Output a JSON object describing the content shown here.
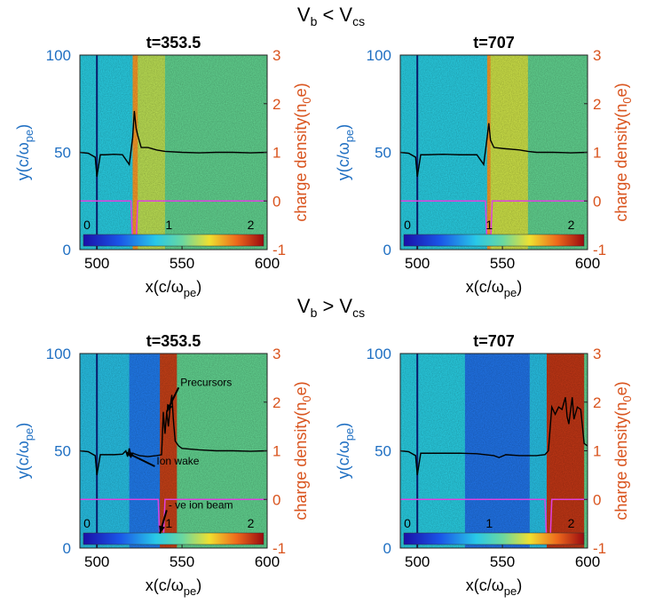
{
  "rows": [
    {
      "label_main": "V",
      "label_sub_a": "b",
      "label_op": " < V",
      "label_sub_b": "cs"
    },
    {
      "label_main": "V",
      "label_sub_a": "b",
      "label_op": " > V",
      "label_sub_b": "cs"
    }
  ],
  "axis": {
    "x_ticks": [
      "500",
      "550",
      "600"
    ],
    "y_left_ticks": [
      "0",
      "50",
      "100"
    ],
    "y_right_ticks": [
      "-1",
      "0",
      "1",
      "2",
      "3"
    ],
    "x_label_main": "x(c/ω",
    "x_label_sub": "pe",
    "x_label_end": ")",
    "y_left_main": "y(c/ω",
    "y_left_sub": "pe",
    "y_left_end": ")",
    "y_right_main": "charge density(n",
    "y_right_sub": "0",
    "y_right_end": "e)"
  },
  "colorbar": {
    "labels": [
      "0",
      "1",
      "2"
    ],
    "range": [
      0,
      2.2
    ]
  },
  "colors": {
    "left_axis": "#1f6fc2",
    "right_axis": "#d9541e",
    "density_line": "#000000",
    "beam_line": "#e040e0",
    "marker_line": "#0a1a6a"
  },
  "chart_data": [
    {
      "type": "heatmap",
      "title": "t=353.5",
      "xlim": [
        490,
        600
      ],
      "ylim_left": [
        0,
        100
      ],
      "ylim_right": [
        -1,
        3
      ],
      "xlabel": "x(c/ωpe)",
      "ylabel_left": "y(c/ωpe)",
      "ylabel_right": "charge density(n0e)",
      "bands": [
        {
          "x0": 490,
          "x1": 521,
          "level": 0.75
        },
        {
          "x0": 521,
          "x1": 524,
          "level": 1.6
        },
        {
          "x0": 524,
          "x1": 540,
          "level": 1.25
        },
        {
          "x0": 540,
          "x1": 600,
          "level": 1.0
        }
      ],
      "marker_x": 500,
      "density_x": [
        490,
        495,
        499,
        500,
        502,
        505,
        510,
        515,
        519,
        521,
        522,
        523,
        524,
        526,
        530,
        535,
        540,
        550,
        560,
        570,
        580,
        590,
        600
      ],
      "density_y": [
        1.0,
        0.98,
        0.9,
        0.5,
        0.95,
        0.95,
        0.96,
        0.95,
        0.75,
        1.3,
        1.85,
        1.5,
        1.35,
        1.1,
        1.1,
        1.05,
        1.02,
        1.0,
        0.99,
        1.0,
        1.0,
        0.99,
        1.0
      ],
      "beam_x": [
        490,
        520,
        521,
        522,
        523,
        524,
        600
      ],
      "beam_y": [
        0,
        0,
        -0.9,
        -0.9,
        -0.9,
        0,
        0
      ],
      "annotations": []
    },
    {
      "type": "heatmap",
      "title": "t=707",
      "xlim": [
        490,
        600
      ],
      "ylim_left": [
        0,
        100
      ],
      "ylim_right": [
        -1,
        3
      ],
      "xlabel": "x(c/ωpe)",
      "ylabel_left": "y(c/ωpe)",
      "ylabel_right": "charge density(n0e)",
      "bands": [
        {
          "x0": 490,
          "x1": 541,
          "level": 0.75
        },
        {
          "x0": 541,
          "x1": 543,
          "level": 1.6
        },
        {
          "x0": 543,
          "x1": 565,
          "level": 1.3
        },
        {
          "x0": 565,
          "x1": 600,
          "level": 1.0
        }
      ],
      "marker_x": 500,
      "density_x": [
        490,
        495,
        499,
        500,
        502,
        505,
        515,
        525,
        535,
        539,
        541,
        542,
        543,
        545,
        550,
        560,
        565,
        570,
        580,
        590,
        600
      ],
      "density_y": [
        1.0,
        0.98,
        0.9,
        0.5,
        0.95,
        0.95,
        0.96,
        0.95,
        0.95,
        0.75,
        1.3,
        1.6,
        1.25,
        1.1,
        1.08,
        1.05,
        1.02,
        1.0,
        1.0,
        0.99,
        1.0
      ],
      "beam_x": [
        490,
        540,
        541,
        542,
        543,
        544,
        600
      ],
      "beam_y": [
        0,
        0,
        -0.9,
        -0.9,
        -0.9,
        0,
        0
      ],
      "annotations": []
    },
    {
      "type": "heatmap",
      "title": "t=353.5",
      "xlim": [
        490,
        600
      ],
      "ylim_left": [
        0,
        100
      ],
      "ylim_right": [
        -1,
        3
      ],
      "xlabel": "x(c/ωpe)",
      "ylabel_left": "y(c/ωpe)",
      "ylabel_right": "charge density(n0e)",
      "bands": [
        {
          "x0": 490,
          "x1": 519,
          "level": 0.7
        },
        {
          "x0": 519,
          "x1": 537,
          "level": 0.45
        },
        {
          "x0": 537,
          "x1": 547,
          "level": 2.0
        },
        {
          "x0": 547,
          "x1": 600,
          "level": 1.0
        }
      ],
      "marker_x": 500,
      "density_x": [
        490,
        495,
        499,
        500,
        502,
        505,
        510,
        515,
        517,
        518,
        519,
        520,
        521,
        525,
        530,
        535,
        538,
        539,
        540,
        541,
        542,
        543,
        544,
        545,
        546,
        548,
        550,
        560,
        570,
        580,
        590,
        600
      ],
      "density_y": [
        1.0,
        0.98,
        0.9,
        0.5,
        0.92,
        0.92,
        0.92,
        0.93,
        1.0,
        0.88,
        1.05,
        0.9,
        0.95,
        0.9,
        0.88,
        0.9,
        0.92,
        1.8,
        1.35,
        1.8,
        1.5,
        1.9,
        2.15,
        1.6,
        1.2,
        1.1,
        1.05,
        1.02,
        1.0,
        1.0,
        0.99,
        1.0
      ],
      "beam_x": [
        490,
        536,
        537,
        538,
        539,
        540,
        600
      ],
      "beam_y": [
        0,
        0,
        -0.9,
        -0.9,
        -0.9,
        0,
        0
      ],
      "annotations": [
        {
          "text": "Precursors",
          "tx": 548,
          "ty": 2.3,
          "ax": 541,
          "ay": 1.8
        },
        {
          "text": "Ion wake",
          "tx": 534,
          "ty": 0.68,
          "ax": 517,
          "ay": 0.97
        },
        {
          "text": "- ve ion beam",
          "tx": 541,
          "ty": -0.22,
          "ax": 537,
          "ay": -0.7
        }
      ]
    },
    {
      "type": "heatmap",
      "title": "t=707",
      "xlim": [
        490,
        600
      ],
      "ylim_left": [
        0,
        100
      ],
      "ylim_right": [
        -1,
        3
      ],
      "xlabel": "x(c/ωpe)",
      "ylabel_left": "y(c/ωpe)",
      "ylabel_right": "charge density(n0e)",
      "bands": [
        {
          "x0": 490,
          "x1": 528,
          "level": 0.75
        },
        {
          "x0": 528,
          "x1": 566,
          "level": 0.42
        },
        {
          "x0": 566,
          "x1": 576,
          "level": 0.7
        },
        {
          "x0": 576,
          "x1": 598,
          "level": 2.05
        },
        {
          "x0": 598,
          "x1": 600,
          "level": 1.0
        }
      ],
      "marker_x": 500,
      "density_x": [
        490,
        495,
        499,
        500,
        502,
        505,
        515,
        525,
        535,
        545,
        548,
        552,
        560,
        570,
        575,
        577,
        579,
        581,
        583,
        585,
        587,
        588,
        589,
        591,
        592,
        594,
        596,
        598,
        600
      ],
      "density_y": [
        1.0,
        0.98,
        0.9,
        0.5,
        0.95,
        0.95,
        0.95,
        0.95,
        0.94,
        0.9,
        0.86,
        0.92,
        0.9,
        0.9,
        0.92,
        1.0,
        1.9,
        1.75,
        1.9,
        1.85,
        2.1,
        1.7,
        1.55,
        2.1,
        1.65,
        1.9,
        1.85,
        1.15,
        1.1
      ],
      "beam_x": [
        490,
        575,
        576,
        577,
        578,
        579,
        600
      ],
      "beam_y": [
        0,
        0,
        -0.9,
        -0.9,
        -0.9,
        0,
        0
      ],
      "annotations": []
    }
  ]
}
